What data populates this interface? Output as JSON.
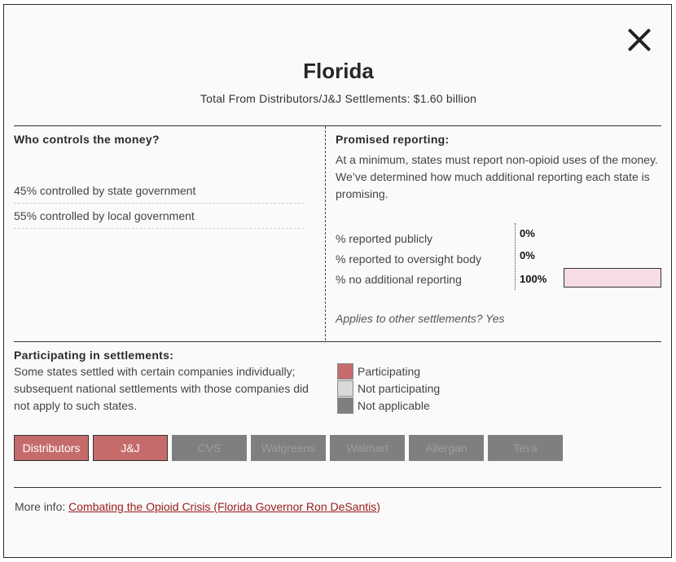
{
  "modal": {
    "title": "Florida",
    "subtitle": "Total From Distributors/J&J Settlements: $1.60 billion"
  },
  "control": {
    "heading": "Who controls the money?",
    "rows": [
      "45% controlled by state government",
      "55% controlled by local government"
    ]
  },
  "reporting": {
    "heading": "Promised reporting:",
    "description": "At a minimum, states must report non-opioid uses of the money. We’ve determined how much additional reporting each state is promising.",
    "rows": [
      {
        "label": "% reported publicly",
        "value": "0%"
      },
      {
        "label": "% reported to oversight body",
        "value": "0%"
      },
      {
        "label": "% no additional reporting",
        "value": "100%"
      }
    ],
    "bar_fraction": 1.0,
    "bar_color": "#f6dde5",
    "applies": "Applies to other settlements? Yes"
  },
  "participation": {
    "heading": "Participating in settlements:",
    "note": "Some states settled with certain companies individually; subsequent national settlements with those companies did not apply to such states.",
    "legend": [
      {
        "label": "Participating",
        "color": "#c66b6b"
      },
      {
        "label": "Not participating",
        "color": "#d9d9d9"
      },
      {
        "label": "Not applicable",
        "color": "#7f7f7f"
      }
    ],
    "companies": [
      {
        "name": "Distributors",
        "status": "participating"
      },
      {
        "name": "J&J",
        "status": "participating"
      },
      {
        "name": "CVS",
        "status": "not-applicable"
      },
      {
        "name": "Walgreens",
        "status": "not-applicable"
      },
      {
        "name": "Walmart",
        "status": "not-applicable"
      },
      {
        "name": "Allergan",
        "status": "not-applicable"
      },
      {
        "name": "Teva",
        "status": "not-applicable"
      }
    ]
  },
  "more_info": {
    "label": "More info:",
    "link_text": "Combating the Opioid Crisis (Florida Governor Ron DeSantis)"
  }
}
